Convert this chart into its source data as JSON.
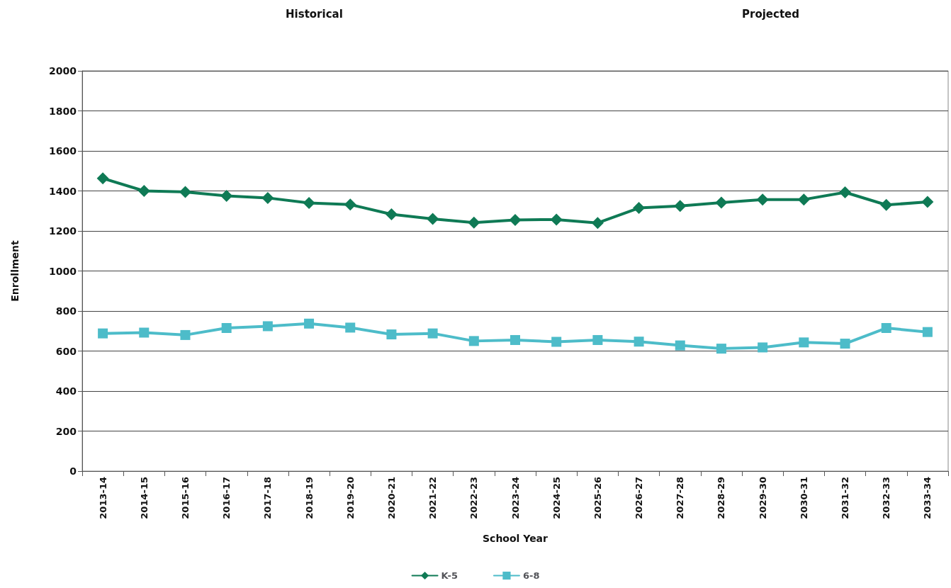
{
  "chart_data": {
    "type": "line",
    "xlabel": "School Year",
    "ylabel": "Enrollment",
    "annotations": [
      "Historical",
      "Projected"
    ],
    "categories": [
      "2013-14",
      "2014-15",
      "2015-16",
      "2016-17",
      "2017-18",
      "2018-19",
      "2019-20",
      "2020-21",
      "2021-22",
      "2022-23",
      "2023-24",
      "2024-25",
      "2025-26",
      "2026-27",
      "2027-28",
      "2028-29",
      "2029-30",
      "2030-31",
      "2031-32",
      "2032-33",
      "2033-34"
    ],
    "series": [
      {
        "name": "K-5",
        "color": "#0f7a55",
        "marker": "diamond",
        "values": [
          1463,
          1400,
          1395,
          1375,
          1365,
          1340,
          1332,
          1283,
          1260,
          1242,
          1255,
          1257,
          1240,
          1315,
          1325,
          1342,
          1357,
          1357,
          1393,
          1330,
          1345
        ]
      },
      {
        "name": "6-8",
        "color": "#4dbcc9",
        "marker": "square",
        "values": [
          688,
          692,
          680,
          715,
          724,
          737,
          717,
          683,
          688,
          650,
          655,
          646,
          655,
          647,
          628,
          612,
          618,
          643,
          637,
          715,
          695
        ]
      }
    ],
    "ylim": [
      0,
      2000
    ],
    "yticks": [
      0,
      200,
      400,
      600,
      800,
      1000,
      1200,
      1400,
      1600,
      1800,
      2000
    ],
    "grid": "y",
    "legend": "bottom",
    "line_style": "solid"
  }
}
